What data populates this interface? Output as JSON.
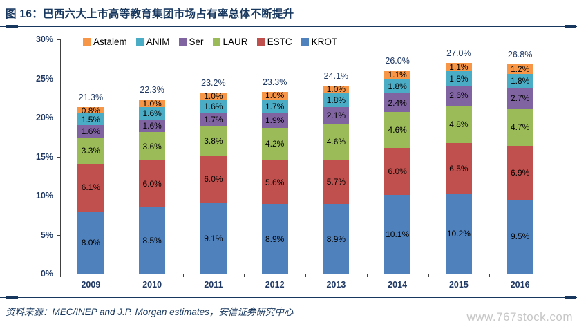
{
  "header": {
    "figure_label": "图 16：",
    "title": "巴西六大上市高等教育集团市场占有率总体不断提升"
  },
  "footer": {
    "source": "资料来源：MEC/INEP and J.P. Morgan estimates，安信证券研究中心",
    "watermark": "www.767stock.com"
  },
  "chart_data": {
    "type": "bar",
    "stacked": true,
    "title": "巴西六大上市高等教育集团市场占有率总体不断提升",
    "categories": [
      "2009",
      "2010",
      "2011",
      "2012",
      "2013",
      "2014",
      "2015",
      "2016"
    ],
    "series": [
      {
        "name": "KROT",
        "color": "#4F81BD",
        "values": [
          8.0,
          8.5,
          9.1,
          8.9,
          8.9,
          10.1,
          10.2,
          9.5
        ]
      },
      {
        "name": "ESTC",
        "color": "#C0504D",
        "values": [
          6.1,
          6.0,
          6.0,
          5.6,
          5.7,
          6.0,
          6.5,
          6.9
        ]
      },
      {
        "name": "LAUR",
        "color": "#9BBB59",
        "values": [
          3.3,
          3.6,
          3.8,
          4.2,
          4.6,
          4.6,
          4.8,
          4.7
        ]
      },
      {
        "name": "Ser",
        "color": "#8064A2",
        "values": [
          1.6,
          1.6,
          1.7,
          1.9,
          2.1,
          2.4,
          2.6,
          2.7
        ]
      },
      {
        "name": "ANIM",
        "color": "#4BACC6",
        "values": [
          1.5,
          1.6,
          1.6,
          1.7,
          1.8,
          1.8,
          1.8,
          1.8
        ]
      },
      {
        "name": "Astalem",
        "color": "#F79646",
        "values": [
          0.8,
          1.0,
          1.0,
          1.0,
          1.0,
          1.1,
          1.1,
          1.2
        ]
      }
    ],
    "totals": [
      "21.3%",
      "22.3%",
      "23.2%",
      "23.3%",
      "24.1%",
      "26.0%",
      "27.0%",
      "26.8%"
    ],
    "legend_order": [
      "Astalem",
      "ANIM",
      "Ser",
      "LAUR",
      "ESTC",
      "KROT"
    ],
    "legend_position": "top",
    "xlabel": "",
    "ylabel": "",
    "ylim": [
      0,
      30
    ],
    "yticks": [
      "0%",
      "5%",
      "10%",
      "15%",
      "20%",
      "25%",
      "30%"
    ],
    "grid": false
  }
}
